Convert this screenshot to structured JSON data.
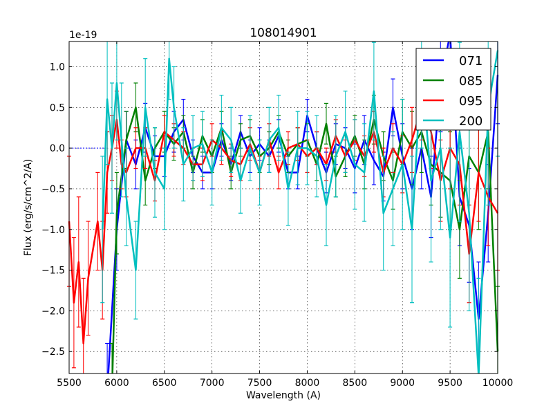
{
  "chart_data": {
    "type": "line",
    "title": "108014901",
    "xlabel": "Wavelength (A)",
    "ylabel": "Flux (erg/s/cm^2/A)",
    "y_offset_label": "1e-19",
    "xlim": [
      5500,
      10000
    ],
    "ylim": [
      -2.77,
      1.31
    ],
    "xticks": [
      "5500",
      "6000",
      "6500",
      "7000",
      "7500",
      "8000",
      "8500",
      "9000",
      "9500",
      "10000"
    ],
    "xtick_values": [
      5500,
      6000,
      6500,
      7000,
      7500,
      8000,
      8500,
      9000,
      9500,
      10000
    ],
    "yticks": [
      "1.0",
      "0.5",
      "0.0",
      "−0.5",
      "−1.0",
      "−1.5",
      "−2.0",
      "−2.5"
    ],
    "ytick_values": [
      1.0,
      0.5,
      0.0,
      -0.5,
      -1.0,
      -1.5,
      -2.0,
      -2.5
    ],
    "grid": true,
    "legend_position": "top-right",
    "series": [
      {
        "name": "071",
        "color": "#0000ff",
        "x": [
          5900,
          6000,
          6100,
          6200,
          6300,
          6400,
          6500,
          6600,
          6700,
          6800,
          6900,
          7000,
          7100,
          7200,
          7300,
          7400,
          7500,
          7600,
          7700,
          7800,
          7900,
          8000,
          8100,
          8200,
          8300,
          8400,
          8500,
          8600,
          8700,
          8800,
          8900,
          9000,
          9100,
          9200,
          9300,
          9400,
          9500,
          9600,
          9700,
          9800,
          9900,
          10000
        ],
        "y": [
          -3.0,
          -1.0,
          0.1,
          -0.2,
          0.25,
          -0.1,
          -0.1,
          0.2,
          0.35,
          -0.1,
          -0.3,
          -0.3,
          0.1,
          -0.2,
          0.2,
          -0.1,
          0.05,
          -0.1,
          0.15,
          -0.3,
          -0.3,
          0.4,
          0.0,
          -0.3,
          0.05,
          0.0,
          -0.25,
          0.1,
          -0.15,
          -0.35,
          0.5,
          -0.1,
          -0.5,
          0.0,
          -0.6,
          0.8,
          1.4,
          -0.6,
          -0.95,
          -2.1,
          -0.8,
          0.9
        ],
        "yerr": [
          0.6,
          0.5,
          0.35,
          0.3,
          0.3,
          0.25,
          0.25,
          0.25,
          0.25,
          0.2,
          0.2,
          0.2,
          0.2,
          0.2,
          0.2,
          0.2,
          0.2,
          0.2,
          0.2,
          0.2,
          0.2,
          0.2,
          0.2,
          0.25,
          0.25,
          0.25,
          0.3,
          0.3,
          0.3,
          0.3,
          0.35,
          0.4,
          0.5,
          0.5,
          0.5,
          0.6,
          0.6,
          0.6,
          0.7,
          0.7,
          0.6,
          0.6
        ]
      },
      {
        "name": "085",
        "color": "#008000",
        "x": [
          5950,
          6000,
          6100,
          6200,
          6300,
          6400,
          6500,
          6600,
          6700,
          6800,
          6900,
          7000,
          7100,
          7200,
          7300,
          7400,
          7500,
          7600,
          7700,
          7800,
          7900,
          8000,
          8100,
          8200,
          8300,
          8400,
          8500,
          8600,
          8700,
          8800,
          8900,
          9000,
          9100,
          9200,
          9300,
          9400,
          9500,
          9600,
          9700,
          9800,
          9900,
          10000
        ],
        "y": [
          -3.0,
          -0.8,
          0.1,
          0.5,
          -0.4,
          0.0,
          0.2,
          0.05,
          0.2,
          -0.3,
          0.15,
          -0.1,
          0.25,
          -0.3,
          0.1,
          0.15,
          -0.1,
          0.0,
          0.2,
          -0.1,
          0.05,
          0.1,
          -0.2,
          0.3,
          -0.35,
          -0.1,
          0.15,
          -0.2,
          0.35,
          -0.1,
          -0.4,
          0.2,
          0.0,
          0.2,
          -0.2,
          -0.3,
          -0.4,
          -1.0,
          -0.1,
          -0.3,
          0.2,
          -2.5
        ],
        "yerr": [
          0.6,
          0.5,
          0.35,
          0.3,
          0.3,
          0.25,
          0.25,
          0.2,
          0.2,
          0.2,
          0.2,
          0.2,
          0.2,
          0.2,
          0.2,
          0.2,
          0.2,
          0.2,
          0.2,
          0.2,
          0.2,
          0.2,
          0.2,
          0.25,
          0.25,
          0.25,
          0.25,
          0.3,
          0.3,
          0.3,
          0.35,
          0.4,
          0.45,
          0.5,
          0.5,
          0.55,
          0.6,
          0.6,
          0.6,
          0.7,
          0.7,
          0.8
        ]
      },
      {
        "name": "095",
        "color": "#ff0000",
        "x": [
          5500,
          5550,
          5600,
          5650,
          5700,
          5800,
          5850,
          5900,
          5950,
          6000,
          6050,
          6100,
          6200,
          6300,
          6400,
          6500,
          6600,
          6700,
          6800,
          6900,
          7000,
          7100,
          7200,
          7300,
          7400,
          7500,
          7600,
          7700,
          7800,
          7900,
          8000,
          8100,
          8200,
          8300,
          8400,
          8500,
          8600,
          8700,
          8800,
          8900,
          9000,
          9100,
          9200,
          9300,
          9400,
          9500,
          9600,
          9700,
          9800,
          9900,
          10000
        ],
        "y": [
          -0.9,
          -1.9,
          -1.4,
          -2.4,
          -1.6,
          -0.9,
          -1.5,
          -0.3,
          0.0,
          0.35,
          -0.2,
          -0.3,
          0.0,
          0.0,
          -0.4,
          0.2,
          0.1,
          0.0,
          -0.2,
          -0.2,
          0.1,
          0.0,
          -0.15,
          -0.2,
          0.05,
          -0.3,
          0.1,
          -0.3,
          0.0,
          0.05,
          -0.1,
          0.0,
          -0.2,
          0.15,
          -0.1,
          0.1,
          -0.1,
          0.2,
          -0.3,
          0.0,
          -0.2,
          0.1,
          0.5,
          0.2,
          -0.4,
          0.0,
          -0.2,
          -1.3,
          -0.3,
          -0.6,
          -0.8
        ],
        "yerr": [
          0.8,
          0.8,
          0.8,
          0.8,
          0.7,
          0.6,
          0.6,
          0.5,
          0.4,
          0.35,
          0.3,
          0.3,
          0.25,
          0.25,
          0.25,
          0.2,
          0.2,
          0.2,
          0.2,
          0.2,
          0.2,
          0.2,
          0.2,
          0.2,
          0.2,
          0.2,
          0.2,
          0.2,
          0.2,
          0.2,
          0.2,
          0.2,
          0.2,
          0.2,
          0.2,
          0.25,
          0.25,
          0.25,
          0.3,
          0.3,
          0.35,
          0.4,
          0.4,
          0.45,
          0.5,
          0.5,
          0.5,
          0.6,
          0.6,
          0.6,
          0.7
        ]
      },
      {
        "name": "200",
        "color": "#00bfbf",
        "x": [
          5850,
          5900,
          5950,
          6000,
          6050,
          6100,
          6200,
          6300,
          6400,
          6500,
          6550,
          6600,
          6700,
          6800,
          6900,
          7000,
          7100,
          7200,
          7300,
          7400,
          7500,
          7600,
          7700,
          7800,
          7900,
          8000,
          8100,
          8200,
          8300,
          8400,
          8500,
          8600,
          8700,
          8800,
          8900,
          9000,
          9100,
          9200,
          9300,
          9400,
          9500,
          9600,
          9700,
          9800,
          9900,
          10000
        ],
        "y": [
          -1.0,
          0.6,
          0.0,
          0.8,
          0.1,
          -0.6,
          -1.5,
          0.5,
          -0.3,
          -0.5,
          1.1,
          0.5,
          -0.2,
          0.0,
          0.05,
          -0.3,
          0.25,
          0.1,
          -0.4,
          0.0,
          -0.3,
          0.1,
          0.25,
          -0.5,
          0.0,
          0.0,
          -0.1,
          -0.7,
          -0.1,
          0.2,
          -0.2,
          -0.3,
          0.7,
          -0.8,
          -0.5,
          -0.2,
          -1.0,
          1.0,
          -0.4,
          0.0,
          -1.1,
          0.2,
          -0.8,
          -2.8,
          0.5,
          1.2
        ],
        "yerr": [
          0.9,
          0.8,
          0.8,
          0.7,
          0.7,
          0.6,
          0.6,
          0.6,
          0.55,
          0.5,
          0.5,
          0.5,
          0.45,
          0.4,
          0.4,
          0.4,
          0.4,
          0.4,
          0.4,
          0.4,
          0.4,
          0.4,
          0.4,
          0.45,
          0.45,
          0.45,
          0.5,
          0.5,
          0.5,
          0.5,
          0.55,
          0.6,
          0.6,
          0.7,
          0.7,
          0.8,
          0.9,
          1.0,
          1.0,
          1.0,
          1.1,
          1.1,
          1.2,
          1.2,
          1.2,
          1.3
        ]
      }
    ]
  }
}
